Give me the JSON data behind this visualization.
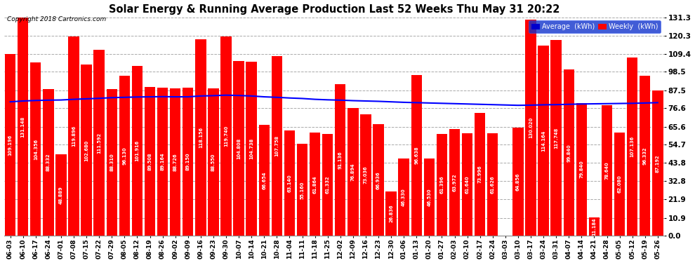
{
  "title": "Solar Energy & Running Average Production Last 52 Weeks Thu May 31 20:22",
  "copyright": "Copyright 2018 Cartronics.com",
  "ylabel_right_values": [
    131.3,
    120.3,
    109.4,
    98.5,
    87.5,
    76.6,
    65.6,
    54.7,
    43.8,
    32.8,
    21.9,
    10.9,
    0.0
  ],
  "ylim": [
    0,
    131.3
  ],
  "bar_color": "#FF0000",
  "avg_line_color": "#0000FF",
  "background_color": "#FFFFFF",
  "plot_bg_color": "#FFFFFF",
  "grid_color": "#AAAAAA",
  "legend_avg_color": "#0000CD",
  "legend_weekly_color": "#FF0000",
  "categories": [
    "06-03",
    "06-10",
    "06-17",
    "06-24",
    "07-01",
    "07-08",
    "07-15",
    "07-22",
    "07-29",
    "08-05",
    "08-12",
    "08-19",
    "08-26",
    "09-02",
    "09-09",
    "09-16",
    "09-23",
    "09-30",
    "10-07",
    "10-14",
    "10-21",
    "10-28",
    "11-04",
    "11-11",
    "11-18",
    "11-25",
    "12-02",
    "12-09",
    "12-16",
    "12-23",
    "12-30",
    "01-06",
    "01-13",
    "01-20",
    "01-27",
    "02-03",
    "02-10",
    "02-17",
    "02-24",
    "03-03",
    "03-10",
    "03-17",
    "03-24",
    "03-31",
    "04-07",
    "04-14",
    "04-21",
    "04-28",
    "05-05",
    "05-12",
    "05-19",
    "05-26"
  ],
  "weekly_values": [
    109.196,
    131.148,
    104.356,
    88.332,
    48.889,
    119.896,
    102.68,
    111.592,
    88.31,
    96.13,
    101.916,
    89.508,
    89.164,
    88.726,
    89.15,
    118.156,
    88.55,
    119.74,
    104.808,
    104.738,
    66.654,
    107.758,
    63.14,
    55.16,
    61.864,
    61.332,
    91.136,
    76.894,
    73.036,
    66.936,
    26.836,
    46.33,
    96.638,
    46.53,
    61.396,
    63.972,
    61.64,
    73.996,
    61.626,
    0.26,
    64.856,
    130.02,
    114.164,
    117.748,
    99.84,
    79.84,
    11.184,
    78.64,
    62.08,
    107.136,
    96.332,
    87.192
  ],
  "avg_values": [
    80.5,
    81.0,
    81.3,
    81.5,
    81.6,
    82.0,
    82.3,
    82.6,
    83.0,
    83.2,
    83.4,
    83.5,
    83.6,
    83.5,
    83.5,
    84.0,
    84.2,
    84.5,
    84.3,
    84.0,
    83.5,
    83.2,
    82.8,
    82.5,
    82.0,
    81.7,
    81.5,
    81.2,
    81.0,
    80.8,
    80.5,
    80.2,
    80.0,
    79.8,
    79.6,
    79.4,
    79.2,
    79.0,
    78.8,
    78.6,
    78.4,
    78.5,
    78.7,
    78.8,
    79.0,
    79.2,
    79.3,
    79.4,
    79.5,
    79.6,
    79.8,
    80.0
  ]
}
